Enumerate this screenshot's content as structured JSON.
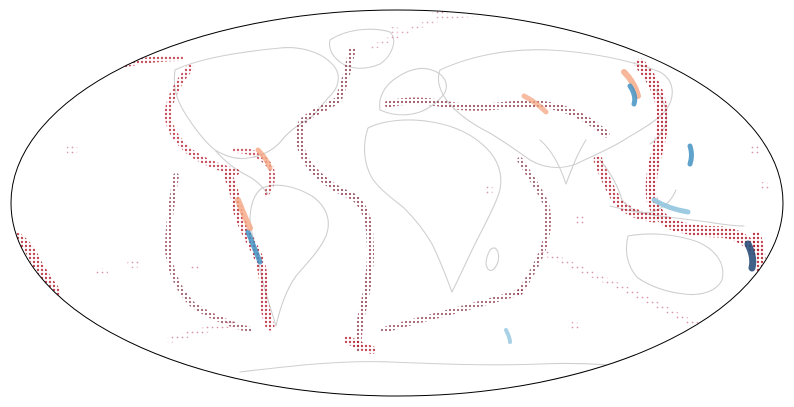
{
  "map": {
    "projection": "mollweide",
    "frame_color": "#000000",
    "background": "#ffffff",
    "coastline_color": "#cfcfcf",
    "palette": {
      "deep_red": "#7a1c33",
      "red": "#b2182b",
      "salmon": "#f4a582",
      "light_blue": "#92c5de",
      "blue": "#4393c3",
      "navy": "#2b4f7a"
    }
  }
}
